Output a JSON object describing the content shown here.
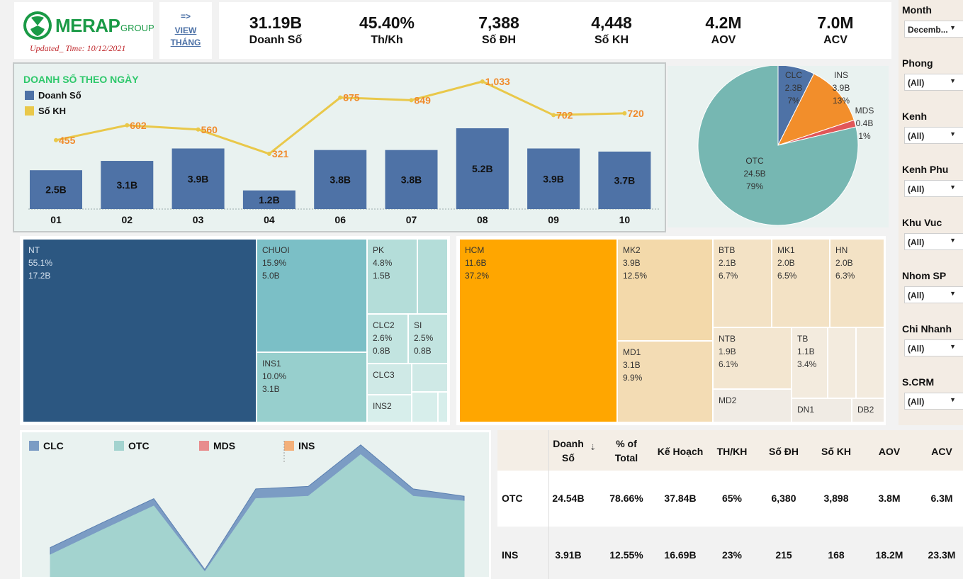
{
  "header": {
    "brand": "MERAP",
    "brand_sub": "GROUP",
    "updated": "Updated_ Time: 10/12/2021",
    "view_arrow": "=>",
    "view_line1": "VIEW",
    "view_line2": "THÁNG"
  },
  "kpis": [
    {
      "value": "31.19B",
      "label": "Doanh Số"
    },
    {
      "value": "45.40%",
      "label": "Th/Kh"
    },
    {
      "value": "7,388",
      "label": "Số ĐH"
    },
    {
      "value": "4,448",
      "label": "Số KH"
    },
    {
      "value": "4.2M",
      "label": "AOV"
    },
    {
      "value": "7.0M",
      "label": "ACV"
    }
  ],
  "filters": [
    {
      "label": "Month",
      "value": "Decemb..."
    },
    {
      "label": "Phong",
      "value": "(All)"
    },
    {
      "label": "Kenh",
      "value": "(All)"
    },
    {
      "label": "Kenh Phu",
      "value": "(All)"
    },
    {
      "label": "Khu Vuc",
      "value": "(All)"
    },
    {
      "label": "Nhom SP",
      "value": "(All)"
    },
    {
      "label": "Chi Nhanh",
      "value": "(All)"
    },
    {
      "label": "S.CRM",
      "value": "(All)"
    }
  ],
  "chart_data": [
    {
      "type": "bar",
      "title": "DOANH SỐ THEO NGÀY",
      "categories": [
        "01",
        "02",
        "03",
        "04",
        "06",
        "07",
        "08",
        "09",
        "10"
      ],
      "series": [
        {
          "name": "Doanh Số",
          "type": "bar",
          "values": [
            2.5,
            3.1,
            3.9,
            1.2,
            3.8,
            3.8,
            5.2,
            3.9,
            3.7
          ],
          "labels": [
            "2.5B",
            "3.1B",
            "3.9B",
            "1.2B",
            "3.8B",
            "3.8B",
            "5.2B",
            "3.9B",
            "3.7B"
          ],
          "color": "#4e72a6"
        },
        {
          "name": "Số KH",
          "type": "line",
          "values": [
            455,
            602,
            560,
            321,
            875,
            849,
            1033,
            702,
            720
          ],
          "labels": [
            "455",
            "602",
            "560",
            "321",
            "875",
            "849",
            "1,033",
            "702",
            "720"
          ],
          "color": "#e9c84a"
        }
      ]
    },
    {
      "type": "pie",
      "slices": [
        {
          "name": "CLC",
          "value": "2.3B",
          "pct": "7%",
          "share": 7.4,
          "color": "#4e72a6"
        },
        {
          "name": "INS",
          "value": "3.9B",
          "pct": "13%",
          "share": 12.5,
          "color": "#f28e2b"
        },
        {
          "name": "MDS",
          "value": "0.4B",
          "pct": "1%",
          "share": 1.4,
          "color": "#e15759"
        },
        {
          "name": "OTC",
          "value": "24.5B",
          "pct": "79%",
          "share": 78.7,
          "color": "#76b7b2"
        }
      ]
    },
    {
      "type": "area",
      "legend": [
        {
          "name": "CLC",
          "color": "#7b9cc4"
        },
        {
          "name": "OTC",
          "color": "#a3d3cf"
        },
        {
          "name": "MDS",
          "color": "#e88c8d"
        },
        {
          "name": "INS",
          "color": "#f3b07a"
        }
      ],
      "series": [
        {
          "name": "OTC",
          "values": [
            0.9,
            1.9,
            2.9,
            0.2,
            3.2,
            3.3,
            5.0,
            3.3,
            3.1
          ]
        },
        {
          "name": "CLC",
          "values": [
            0.3,
            0.3,
            0.3,
            0.1,
            0.4,
            0.4,
            0.4,
            0.3,
            0.2
          ]
        }
      ]
    }
  ],
  "treemap1": [
    {
      "name": "NT",
      "pct": "55.1%",
      "value": "17.2B"
    },
    {
      "name": "CHUOI",
      "pct": "15.9%",
      "value": "5.0B"
    },
    {
      "name": "PK",
      "pct": "4.8%",
      "value": "1.5B"
    },
    {
      "name": "INS1",
      "pct": "10.0%",
      "value": "3.1B"
    },
    {
      "name": "CLC2",
      "pct": "2.6%",
      "value": "0.8B"
    },
    {
      "name": "SI",
      "pct": "2.5%",
      "value": "0.8B"
    },
    {
      "name": "CLC3",
      "pct": "",
      "value": ""
    },
    {
      "name": "INS2",
      "pct": "",
      "value": ""
    }
  ],
  "treemap2": [
    {
      "name": "HCM",
      "pct": "11.6B",
      "value": "37.2%"
    },
    {
      "name": "MK2",
      "pct": "3.9B",
      "value": "12.5%"
    },
    {
      "name": "BTB",
      "pct": "2.1B",
      "value": "6.7%"
    },
    {
      "name": "MK1",
      "pct": "2.0B",
      "value": "6.5%"
    },
    {
      "name": "HN",
      "pct": "2.0B",
      "value": "6.3%"
    },
    {
      "name": "MD1",
      "pct": "3.1B",
      "value": "9.9%"
    },
    {
      "name": "NTB",
      "pct": "1.9B",
      "value": "6.1%"
    },
    {
      "name": "TB",
      "pct": "1.1B",
      "value": "3.4%"
    },
    {
      "name": "MD2",
      "pct": "",
      "value": ""
    },
    {
      "name": "DN1",
      "pct": "",
      "value": ""
    },
    {
      "name": "DB2",
      "pct": "",
      "value": ""
    }
  ],
  "table": {
    "headers": [
      "Doanh\nSố",
      "% of\nTotal",
      "Kế Hoạch",
      "TH/KH",
      "Số ĐH",
      "Số KH",
      "AOV",
      "ACV"
    ],
    "rows": [
      {
        "name": "OTC",
        "cells": [
          "24.54B",
          "78.66%",
          "37.84B",
          "65%",
          "6,380",
          "3,898",
          "3.8M",
          "6.3M"
        ]
      },
      {
        "name": "INS",
        "cells": [
          "3.91B",
          "12.55%",
          "16.69B",
          "23%",
          "215",
          "168",
          "18.2M",
          "23.3M"
        ]
      }
    ]
  }
}
